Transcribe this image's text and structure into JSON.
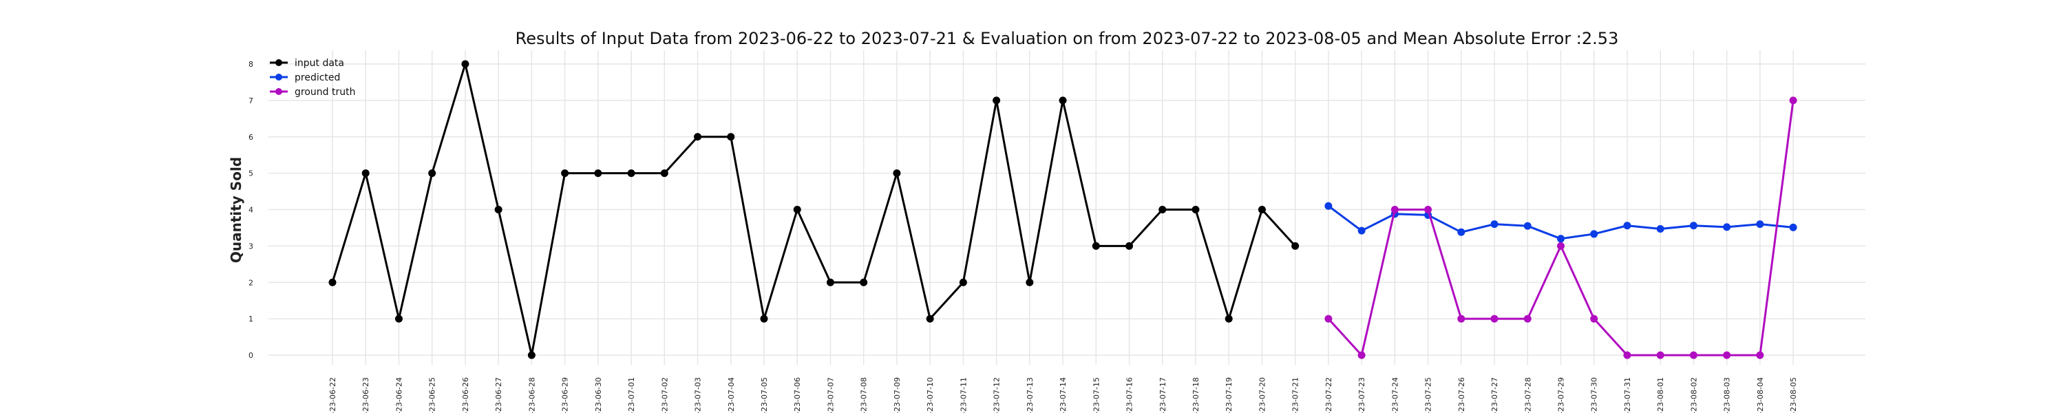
{
  "chart_data": {
    "type": "line",
    "title": "Results of Input Data from 2023-06-22 to 2023-07-21 & Evaluation on from 2023-07-22 to 2023-08-05 and Mean Absolute Error  :2.53",
    "xlabel": "",
    "ylabel": "Quantity Sold",
    "ylim": [
      -0.3,
      8.4
    ],
    "yticks": [
      0,
      1,
      2,
      3,
      4,
      5,
      6,
      7,
      8
    ],
    "grid": true,
    "legend_position": "top-left",
    "x": [
      "2023-06-22",
      "2023-06-23",
      "2023-06-24",
      "2023-06-25",
      "2023-06-26",
      "2023-06-27",
      "2023-06-28",
      "2023-06-29",
      "2023-06-30",
      "2023-07-01",
      "2023-07-02",
      "2023-07-03",
      "2023-07-04",
      "2023-07-05",
      "2023-07-06",
      "2023-07-07",
      "2023-07-08",
      "2023-07-09",
      "2023-07-10",
      "2023-07-11",
      "2023-07-12",
      "2023-07-13",
      "2023-07-14",
      "2023-07-15",
      "2023-07-16",
      "2023-07-17",
      "2023-07-18",
      "2023-07-19",
      "2023-07-20",
      "2023-07-21",
      "2023-07-22",
      "2023-07-23",
      "2023-07-24",
      "2023-07-25",
      "2023-07-26",
      "2023-07-27",
      "2023-07-28",
      "2023-07-29",
      "2023-07-30",
      "2023-07-31",
      "2023-08-01",
      "2023-08-02",
      "2023-08-03",
      "2023-08-04",
      "2023-08-05"
    ],
    "xtick_labels": [
      "-23-06-22",
      "-23-06-23",
      "-23-06-24",
      "-23-06-25",
      "-23-06-26",
      "-23-06-27",
      "-23-06-28",
      "-23-06-29",
      "-23-06-30",
      "-23-07-01",
      "-23-07-02",
      "-23-07-03",
      "-23-07-04",
      "-23-07-05",
      "-23-07-06",
      "-23-07-07",
      "-23-07-08",
      "-23-07-09",
      "-23-07-10",
      "-23-07-11",
      "-23-07-12",
      "-23-07-13",
      "-23-07-14",
      "-23-07-15",
      "-23-07-16",
      "-23-07-17",
      "-23-07-18",
      "-23-07-19",
      "-23-07-20",
      "-23-07-21",
      "-23-07-22",
      "-23-07-23",
      "-23-07-24",
      "-23-07-25",
      "-23-07-26",
      "-23-07-27",
      "-23-07-28",
      "-23-07-29",
      "-23-07-30",
      "-23-07-31",
      "-23-08-01",
      "-23-08-02",
      "-23-08-03",
      "-23-08-04",
      "-23-08-05"
    ],
    "series": [
      {
        "name": "input data",
        "color": "#000000",
        "x": [
          "2023-06-22",
          "2023-06-23",
          "2023-06-24",
          "2023-06-25",
          "2023-06-26",
          "2023-06-27",
          "2023-06-28",
          "2023-06-29",
          "2023-06-30",
          "2023-07-01",
          "2023-07-02",
          "2023-07-03",
          "2023-07-04",
          "2023-07-05",
          "2023-07-06",
          "2023-07-07",
          "2023-07-08",
          "2023-07-09",
          "2023-07-10",
          "2023-07-11",
          "2023-07-12",
          "2023-07-13",
          "2023-07-14",
          "2023-07-15",
          "2023-07-16",
          "2023-07-17",
          "2023-07-18",
          "2023-07-19",
          "2023-07-20",
          "2023-07-21"
        ],
        "values": [
          2,
          5,
          1,
          5,
          8,
          4,
          0,
          5,
          5,
          5,
          5,
          6,
          6,
          1,
          4,
          2,
          2,
          5,
          1,
          2,
          7,
          2,
          7,
          3,
          3,
          4,
          4,
          1,
          4,
          3
        ]
      },
      {
        "name": "predicted",
        "color": "#0a3de6",
        "x": [
          "2023-07-22",
          "2023-07-23",
          "2023-07-24",
          "2023-07-25",
          "2023-07-26",
          "2023-07-27",
          "2023-07-28",
          "2023-07-29",
          "2023-07-30",
          "2023-07-31",
          "2023-08-01",
          "2023-08-02",
          "2023-08-03",
          "2023-08-04",
          "2023-08-05"
        ],
        "values": [
          4.1,
          3.42,
          3.88,
          3.85,
          3.38,
          3.6,
          3.55,
          3.2,
          3.33,
          3.56,
          3.47,
          3.56,
          3.52,
          3.6,
          3.51
        ]
      },
      {
        "name": "ground truth",
        "color": "#b00cc0",
        "x": [
          "2023-07-22",
          "2023-07-23",
          "2023-07-24",
          "2023-07-25",
          "2023-07-26",
          "2023-07-27",
          "2023-07-28",
          "2023-07-29",
          "2023-07-30",
          "2023-07-31",
          "2023-08-01",
          "2023-08-02",
          "2023-08-03",
          "2023-08-04",
          "2023-08-05"
        ],
        "values": [
          1,
          0,
          4,
          4,
          1,
          1,
          1,
          3,
          1,
          0,
          0,
          0,
          0,
          0,
          7
        ]
      }
    ]
  }
}
